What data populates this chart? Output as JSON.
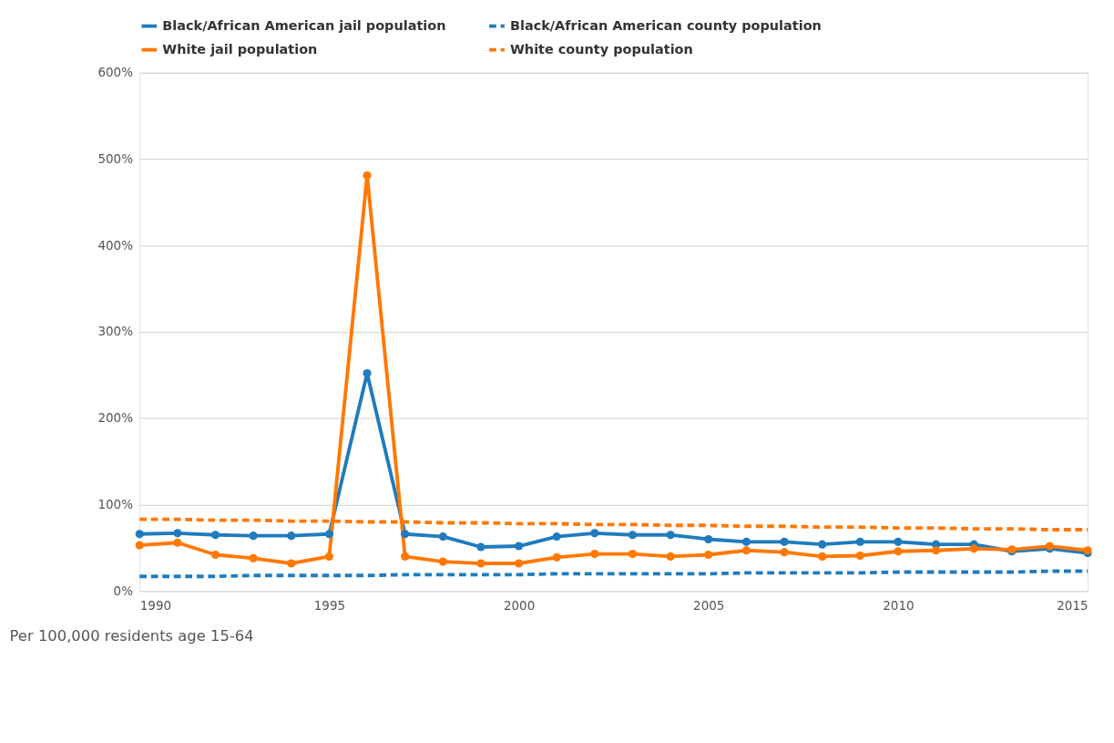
{
  "chart_data": {
    "type": "line",
    "annotations": [
      "Per 100,000 residents age 15-64"
    ],
    "x": [
      1990,
      1991,
      1992,
      1993,
      1994,
      1995,
      1996,
      1997,
      1998,
      1999,
      2000,
      2001,
      2002,
      2003,
      2004,
      2005,
      2006,
      2007,
      2008,
      2009,
      2010,
      2011,
      2012,
      2013,
      2014,
      2015
    ],
    "series": [
      {
        "name": "Black/African American jail population",
        "color": "#1f7bbd",
        "marker": "circle",
        "line_style": "solid",
        "values": [
          66,
          67,
          65,
          64,
          64,
          66,
          252,
          66,
          63,
          51,
          52,
          63,
          67,
          65,
          65,
          60,
          57,
          57,
          54,
          57,
          57,
          54,
          54,
          46,
          49,
          44
        ]
      },
      {
        "name": "Black/African American county population",
        "color": "#1f7bbd",
        "marker": "none",
        "line_style": "dashed",
        "values": [
          17,
          17,
          17,
          18,
          18,
          18,
          18,
          19,
          19,
          19,
          19,
          20,
          20,
          20,
          20,
          20,
          21,
          21,
          21,
          21,
          22,
          22,
          22,
          22,
          23,
          23
        ]
      },
      {
        "name": "White jail population",
        "color": "#ff7800",
        "marker": "circle",
        "line_style": "solid",
        "values": [
          53,
          56,
          42,
          38,
          32,
          40,
          481,
          40,
          34,
          32,
          32,
          39,
          43,
          43,
          40,
          42,
          47,
          45,
          40,
          41,
          46,
          47,
          49,
          48,
          52,
          47
        ]
      },
      {
        "name": "White county population",
        "color": "#ff7800",
        "marker": "none",
        "line_style": "dashed",
        "values": [
          83,
          83,
          82,
          82,
          81,
          81,
          80,
          80,
          79,
          79,
          78,
          78,
          77,
          77,
          76,
          76,
          75,
          75,
          74,
          74,
          73,
          73,
          72,
          72,
          71,
          71
        ]
      }
    ],
    "xlim": [
      1990,
      2015
    ],
    "xticks": [
      1990,
      1995,
      2000,
      2005,
      2010,
      2015
    ],
    "ylim": [
      0,
      600
    ],
    "yticks": [
      {
        "value": 0,
        "label": "0%"
      },
      {
        "value": 100,
        "label": "100%"
      },
      {
        "value": 200,
        "label": "200%"
      },
      {
        "value": 300,
        "label": "300%"
      },
      {
        "value": 400,
        "label": "400%"
      },
      {
        "value": 500,
        "label": "500%"
      },
      {
        "value": 600,
        "label": "600%"
      }
    ],
    "grid": "y",
    "legend": "top"
  }
}
